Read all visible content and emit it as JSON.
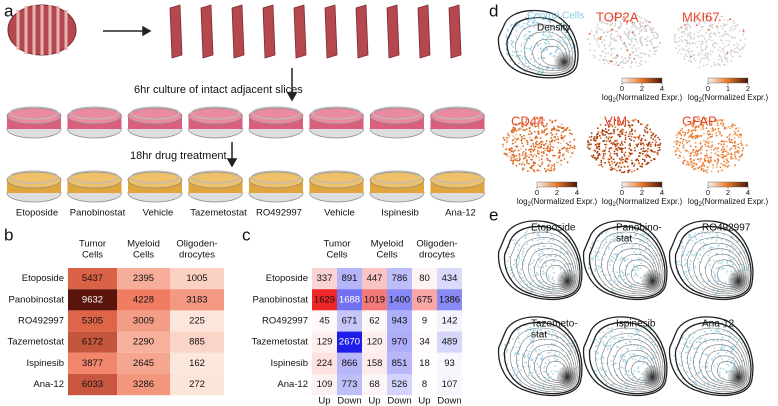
{
  "panel_labels": [
    "a",
    "b",
    "c",
    "d",
    "e"
  ],
  "panel_a": {
    "step1": "6hr culture of intact adjacent slices",
    "step2": "18hr drug treatment",
    "drugs": [
      "Etoposide",
      "Panobinostat",
      "Vehicle",
      "Tazemetostat",
      "RO492997",
      "Vehicle",
      "Ispinesib",
      "Ana-12"
    ]
  },
  "table_b": {
    "columns": [
      [
        "Tumor",
        "Cells"
      ],
      [
        "Myeloid",
        "Cells"
      ],
      [
        "Oligoden-",
        "drocytes"
      ]
    ],
    "rows": [
      {
        "label": "Etoposide",
        "values": [
          5437,
          2395,
          1005
        ]
      },
      {
        "label": "Panobinostat",
        "values": [
          9632,
          4228,
          3183
        ]
      },
      {
        "label": "RO492997",
        "values": [
          5305,
          3009,
          225
        ]
      },
      {
        "label": "Tazemetostat",
        "values": [
          6172,
          2290,
          885
        ]
      },
      {
        "label": "Ispinesib",
        "values": [
          3877,
          2645,
          162
        ]
      },
      {
        "label": "Ana-12",
        "values": [
          6033,
          3286,
          272
        ]
      }
    ]
  },
  "table_c": {
    "columns": [
      [
        "Tumor",
        "Cells"
      ],
      [
        "Myeloid",
        "Cells"
      ],
      [
        "Oligoden-",
        "drocytes"
      ]
    ],
    "subcolumns": [
      "Up",
      "Down",
      "Up",
      "Down",
      "Up",
      "Down"
    ],
    "rows": [
      {
        "label": "Etoposide",
        "values": [
          337,
          891,
          447,
          786,
          80,
          434
        ]
      },
      {
        "label": "Panobinostat",
        "values": [
          1629,
          1688,
          1019,
          1400,
          675,
          1386
        ]
      },
      {
        "label": "RO492997",
        "values": [
          45,
          671,
          62,
          943,
          9,
          142
        ]
      },
      {
        "label": "Tazemetostat",
        "values": [
          129,
          2670,
          120,
          970,
          34,
          489
        ]
      },
      {
        "label": "Ispinesib",
        "values": [
          224,
          866,
          158,
          851,
          18,
          93
        ]
      },
      {
        "label": "Ana-12",
        "values": [
          109,
          773,
          68,
          526,
          8,
          107
        ]
      }
    ]
  },
  "panel_d": {
    "control": "Control Cells",
    "density": "Density",
    "genes": [
      {
        "name": "TOP2A",
        "ticks": [
          0,
          2,
          4
        ]
      },
      {
        "name": "MKI67",
        "ticks": [
          0,
          1,
          2
        ]
      },
      {
        "name": "CD44",
        "ticks": [
          0,
          2,
          4
        ]
      },
      {
        "name": "VIM",
        "ticks": [
          0,
          2,
          4
        ]
      },
      {
        "name": "GFAP",
        "ticks": [
          0,
          2,
          4
        ]
      }
    ],
    "colorbar_label": {
      "pre": "log",
      "sub": "2",
      "post": "(Normalized Expr.)"
    }
  },
  "panel_e": {
    "drugs": [
      [
        "Etoposide"
      ],
      [
        "Panobino-",
        "stat"
      ],
      [
        "RO492997"
      ],
      [
        "Tazemeto-",
        "stat"
      ],
      [
        "Ispinesib"
      ],
      [
        "Ana-12"
      ]
    ]
  }
}
